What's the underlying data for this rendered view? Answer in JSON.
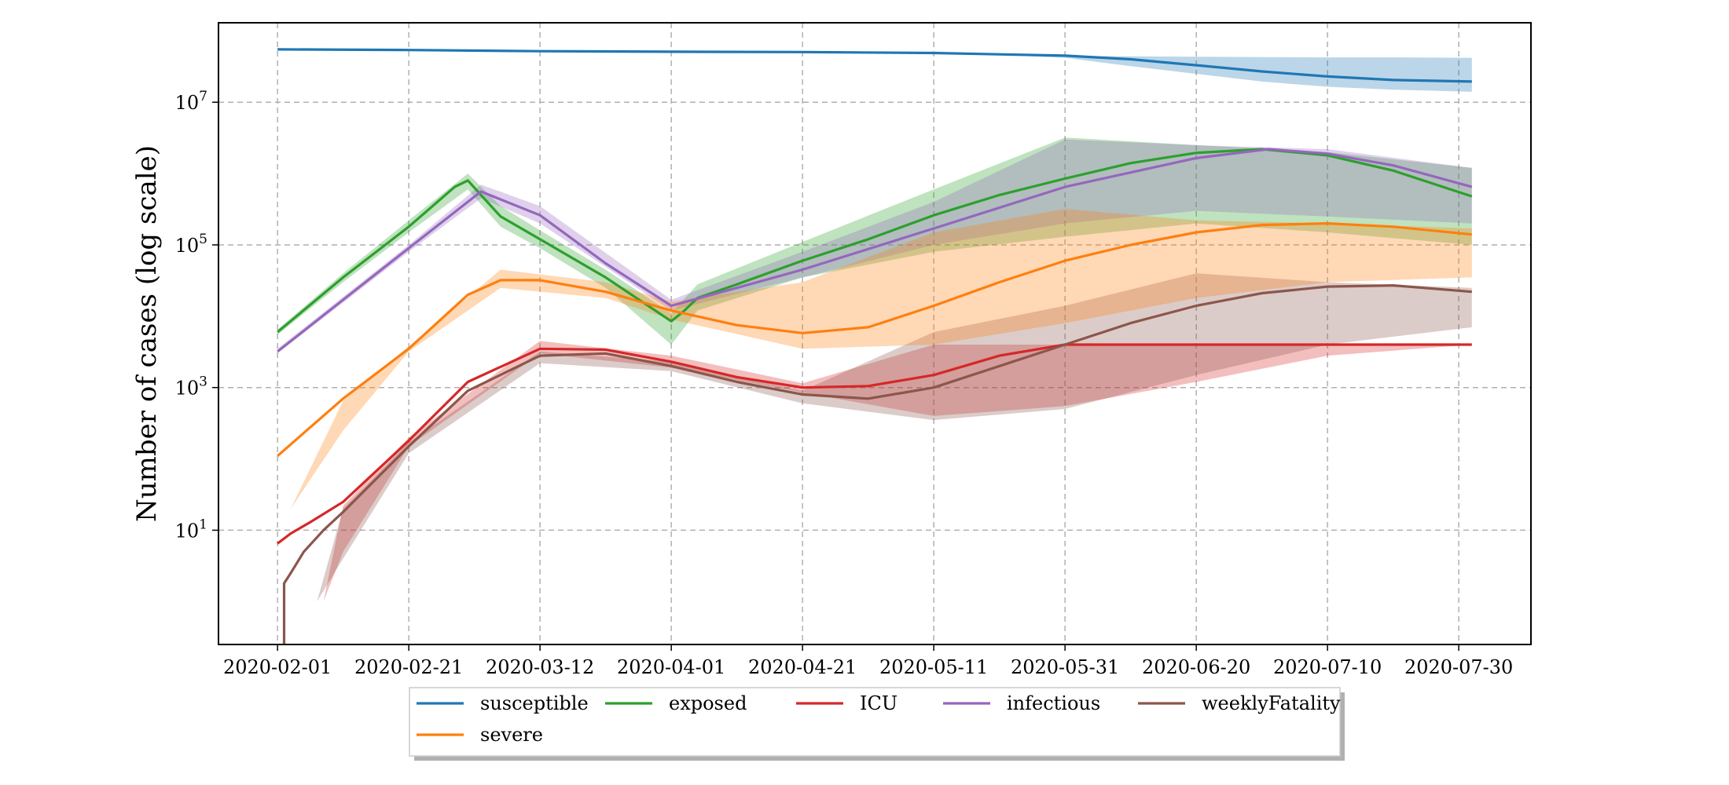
{
  "chart_data": {
    "type": "line",
    "title": "",
    "xlabel": "",
    "ylabel": "Number of cases (log scale)",
    "y_scale": "log",
    "ylim": [
      0.25,
      130000000
    ],
    "xlim": [
      "2020-01-23",
      "2020-08-10"
    ],
    "grid": true,
    "legend_position": "bottom-center",
    "x_ticks": [
      "2020-02-01",
      "2020-02-21",
      "2020-03-12",
      "2020-04-01",
      "2020-04-21",
      "2020-05-11",
      "2020-05-31",
      "2020-06-20",
      "2020-07-10",
      "2020-07-30"
    ],
    "y_ticks": [
      {
        "value": 10,
        "base": "10",
        "exp": "1"
      },
      {
        "value": 1000,
        "base": "10",
        "exp": "3"
      },
      {
        "value": 100000,
        "base": "10",
        "exp": "5"
      },
      {
        "value": 10000000,
        "base": "10",
        "exp": "7"
      }
    ],
    "series": [
      {
        "name": "susceptible",
        "color": "#1f77b4",
        "line": [
          [
            "2020-02-01",
            55000000
          ],
          [
            "2020-02-21",
            54000000
          ],
          [
            "2020-03-12",
            52000000
          ],
          [
            "2020-04-01",
            51000000
          ],
          [
            "2020-04-21",
            50500000
          ],
          [
            "2020-05-11",
            49000000
          ],
          [
            "2020-05-31",
            45000000
          ],
          [
            "2020-06-10",
            40000000
          ],
          [
            "2020-06-20",
            33000000
          ],
          [
            "2020-06-30",
            27000000
          ],
          [
            "2020-07-10",
            23000000
          ],
          [
            "2020-07-20",
            20500000
          ],
          [
            "2020-08-01",
            19500000
          ]
        ],
        "band": [
          [
            "2020-05-21",
            47000000,
            46000000
          ],
          [
            "2020-05-31",
            45000000,
            42000000
          ],
          [
            "2020-06-10",
            44000000,
            32000000
          ],
          [
            "2020-06-20",
            43500000,
            25000000
          ],
          [
            "2020-06-30",
            43000000,
            19500000
          ],
          [
            "2020-07-10",
            42500000,
            16500000
          ],
          [
            "2020-07-20",
            42500000,
            15000000
          ],
          [
            "2020-08-01",
            42000000,
            14000000
          ]
        ]
      },
      {
        "name": "exposed",
        "color": "#2ca02c",
        "line": [
          [
            "2020-02-01",
            6000
          ],
          [
            "2020-02-11",
            35000
          ],
          [
            "2020-02-21",
            180000
          ],
          [
            "2020-02-28",
            650000
          ],
          [
            "2020-03-01",
            800000
          ],
          [
            "2020-03-03",
            500000
          ],
          [
            "2020-03-06",
            250000
          ],
          [
            "2020-03-12",
            120000
          ],
          [
            "2020-03-22",
            35000
          ],
          [
            "2020-04-01",
            8500
          ],
          [
            "2020-04-03",
            12000
          ],
          [
            "2020-04-05",
            18000
          ],
          [
            "2020-04-11",
            28000
          ],
          [
            "2020-04-21",
            60000
          ],
          [
            "2020-05-01",
            120000
          ],
          [
            "2020-05-11",
            260000
          ],
          [
            "2020-05-21",
            500000
          ],
          [
            "2020-05-31",
            850000
          ],
          [
            "2020-06-10",
            1400000
          ],
          [
            "2020-06-20",
            1950000
          ],
          [
            "2020-06-30",
            2200000
          ],
          [
            "2020-07-10",
            1800000
          ],
          [
            "2020-07-20",
            1100000
          ],
          [
            "2020-08-01",
            480000
          ]
        ],
        "band": [
          [
            "2020-02-01",
            6500,
            5500
          ],
          [
            "2020-02-11",
            40000,
            30000
          ],
          [
            "2020-02-21",
            220000,
            150000
          ],
          [
            "2020-03-01",
            1000000,
            600000
          ],
          [
            "2020-03-06",
            350000,
            180000
          ],
          [
            "2020-03-12",
            160000,
            90000
          ],
          [
            "2020-03-22",
            45000,
            25000
          ],
          [
            "2020-04-01",
            11000,
            4000
          ],
          [
            "2020-04-05",
            28000,
            12000
          ],
          [
            "2020-04-21",
            110000,
            35000
          ],
          [
            "2020-05-11",
            600000,
            80000
          ],
          [
            "2020-05-31",
            3200000,
            130000
          ],
          [
            "2020-06-20",
            2500000,
            200000
          ],
          [
            "2020-07-10",
            2000000,
            150000
          ],
          [
            "2020-08-01",
            1200000,
            100000
          ]
        ]
      },
      {
        "name": "ICU",
        "color": "#d62728",
        "line": [
          [
            "2020-02-01",
            6.5
          ],
          [
            "2020-02-03",
            9
          ],
          [
            "2020-02-06",
            13
          ],
          [
            "2020-02-11",
            25
          ],
          [
            "2020-02-21",
            180
          ],
          [
            "2020-03-01",
            1200
          ],
          [
            "2020-03-12",
            3500
          ],
          [
            "2020-03-22",
            3400
          ],
          [
            "2020-04-01",
            2300
          ],
          [
            "2020-04-11",
            1400
          ],
          [
            "2020-04-21",
            1000
          ],
          [
            "2020-05-01",
            1050
          ],
          [
            "2020-05-11",
            1500
          ],
          [
            "2020-05-21",
            2800
          ],
          [
            "2020-05-31",
            4000
          ],
          [
            "2020-06-10",
            4000
          ],
          [
            "2020-08-01",
            4000
          ]
        ],
        "band": [
          [
            "2020-02-08",
            1,
            1
          ],
          [
            "2020-02-11",
            22,
            5
          ],
          [
            "2020-02-21",
            200,
            150
          ],
          [
            "2020-03-12",
            4500,
            3000
          ],
          [
            "2020-04-01",
            2800,
            1900
          ],
          [
            "2020-04-21",
            1150,
            850
          ],
          [
            "2020-05-11",
            4000,
            400
          ],
          [
            "2020-05-31",
            4000,
            550
          ],
          [
            "2020-06-20",
            4000,
            1200
          ],
          [
            "2020-07-10",
            4000,
            2800
          ],
          [
            "2020-08-01",
            4000,
            4000
          ]
        ]
      },
      {
        "name": "infectious",
        "color": "#9467bd",
        "line": [
          [
            "2020-02-01",
            3200
          ],
          [
            "2020-02-11",
            17000
          ],
          [
            "2020-02-21",
            90000
          ],
          [
            "2020-03-03",
            560000
          ],
          [
            "2020-03-12",
            260000
          ],
          [
            "2020-03-22",
            55000
          ],
          [
            "2020-04-01",
            14000
          ],
          [
            "2020-04-11",
            25000
          ],
          [
            "2020-04-21",
            45000
          ],
          [
            "2020-05-11",
            170000
          ],
          [
            "2020-05-31",
            650000
          ],
          [
            "2020-06-20",
            1650000
          ],
          [
            "2020-07-01",
            2200000
          ],
          [
            "2020-07-10",
            1900000
          ],
          [
            "2020-07-20",
            1300000
          ],
          [
            "2020-08-01",
            650000
          ]
        ],
        "band": [
          [
            "2020-02-01",
            3500,
            3000
          ],
          [
            "2020-02-21",
            100000,
            80000
          ],
          [
            "2020-03-03",
            700000,
            450000
          ],
          [
            "2020-03-12",
            350000,
            200000
          ],
          [
            "2020-04-01",
            17000,
            12000
          ],
          [
            "2020-04-21",
            80000,
            35000
          ],
          [
            "2020-05-11",
            400000,
            100000
          ],
          [
            "2020-05-31",
            3000000,
            200000
          ],
          [
            "2020-06-20",
            2500000,
            300000
          ],
          [
            "2020-07-10",
            2200000,
            250000
          ],
          [
            "2020-08-01",
            1200000,
            200000
          ]
        ]
      },
      {
        "name": "weeklyFatality",
        "color": "#8c564b",
        "line": [
          [
            "2020-02-02",
            0.25
          ],
          [
            "2020-02-02",
            1.8
          ],
          [
            "2020-02-03",
            2.5
          ],
          [
            "2020-02-05",
            5
          ],
          [
            "2020-02-08",
            10
          ],
          [
            "2020-02-11",
            18
          ],
          [
            "2020-02-21",
            150
          ],
          [
            "2020-03-01",
            900
          ],
          [
            "2020-03-12",
            2800
          ],
          [
            "2020-03-22",
            3000
          ],
          [
            "2020-04-01",
            2000
          ],
          [
            "2020-04-11",
            1200
          ],
          [
            "2020-04-21",
            800
          ],
          [
            "2020-05-01",
            700
          ],
          [
            "2020-05-11",
            1000
          ],
          [
            "2020-05-21",
            2000
          ],
          [
            "2020-05-31",
            4000
          ],
          [
            "2020-06-10",
            8000
          ],
          [
            "2020-06-20",
            14000
          ],
          [
            "2020-06-30",
            21000
          ],
          [
            "2020-07-10",
            26000
          ],
          [
            "2020-07-20",
            27000
          ],
          [
            "2020-08-01",
            22000
          ]
        ],
        "band": [
          [
            "2020-02-07",
            1,
            1
          ],
          [
            "2020-02-11",
            20,
            4
          ],
          [
            "2020-02-21",
            170,
            120
          ],
          [
            "2020-03-12",
            3200,
            2200
          ],
          [
            "2020-04-01",
            2300,
            1700
          ],
          [
            "2020-04-21",
            900,
            600
          ],
          [
            "2020-05-11",
            6000,
            350
          ],
          [
            "2020-05-31",
            14000,
            500
          ],
          [
            "2020-06-20",
            40000,
            1500
          ],
          [
            "2020-07-10",
            30000,
            4000
          ],
          [
            "2020-08-01",
            25000,
            7000
          ]
        ]
      },
      {
        "name": "severe",
        "color": "#ff7f0e",
        "line": [
          [
            "2020-02-01",
            110
          ],
          [
            "2020-02-11",
            700
          ],
          [
            "2020-02-21",
            3500
          ],
          [
            "2020-03-01",
            20000
          ],
          [
            "2020-03-06",
            32000
          ],
          [
            "2020-03-12",
            32000
          ],
          [
            "2020-03-22",
            22000
          ],
          [
            "2020-04-01",
            12000
          ],
          [
            "2020-04-11",
            7500
          ],
          [
            "2020-04-21",
            5800
          ],
          [
            "2020-05-01",
            7000
          ],
          [
            "2020-05-11",
            14000
          ],
          [
            "2020-05-21",
            30000
          ],
          [
            "2020-05-31",
            60000
          ],
          [
            "2020-06-10",
            100000
          ],
          [
            "2020-06-20",
            150000
          ],
          [
            "2020-06-30",
            190000
          ],
          [
            "2020-07-10",
            200000
          ],
          [
            "2020-07-20",
            180000
          ],
          [
            "2020-08-01",
            140000
          ]
        ],
        "band": [
          [
            "2020-02-03",
            20,
            20
          ],
          [
            "2020-02-11",
            650,
            250
          ],
          [
            "2020-02-21",
            3800,
            3200
          ],
          [
            "2020-03-06",
            45000,
            25000
          ],
          [
            "2020-03-22",
            30000,
            18000
          ],
          [
            "2020-04-01",
            16000,
            9000
          ],
          [
            "2020-04-21",
            30000,
            3500
          ],
          [
            "2020-05-11",
            150000,
            4000
          ],
          [
            "2020-05-31",
            320000,
            8000
          ],
          [
            "2020-06-20",
            220000,
            18000
          ],
          [
            "2020-07-10",
            200000,
            30000
          ],
          [
            "2020-08-01",
            170000,
            35000
          ]
        ]
      }
    ],
    "legend": {
      "rows": [
        [
          "susceptible",
          "exposed",
          "ICU",
          "infectious",
          "weeklyFatality"
        ],
        [
          "severe"
        ]
      ]
    }
  }
}
